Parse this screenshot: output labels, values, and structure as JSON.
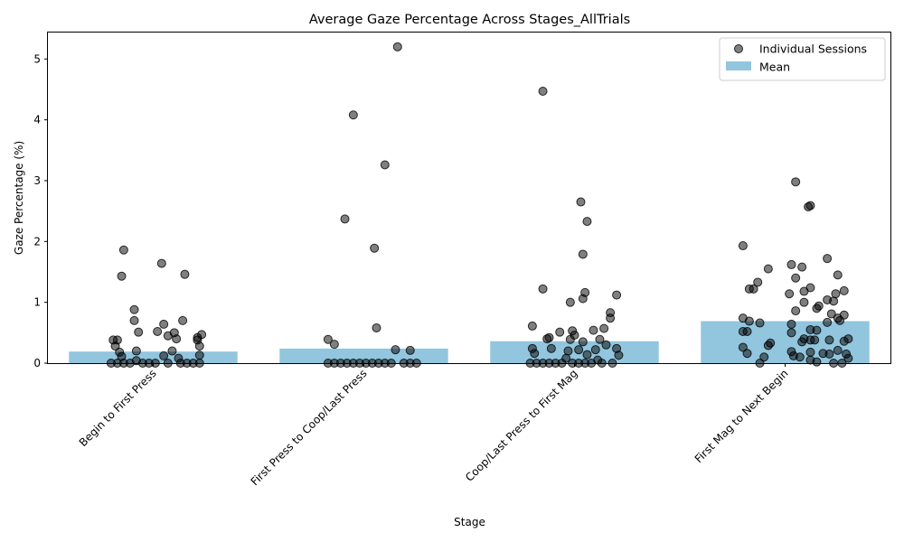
{
  "chart_data": {
    "type": "bar",
    "title": "Average Gaze Percentage Across Stages_AllTrials",
    "xlabel": "Stage",
    "ylabel": "Gaze Percentage (%)",
    "categories": [
      "Begin to First Press",
      "First Press to Coop/Last Press",
      "Coop/Last Press to First Mag",
      "First Mag to Next Begin"
    ],
    "ylim": [
      0,
      5.45
    ],
    "yticks": [
      0,
      1,
      2,
      3,
      4,
      5
    ],
    "legend_position": "top-right",
    "grid": false,
    "series": [
      {
        "name": "Mean",
        "kind": "bar",
        "color": "#92c5de",
        "values": [
          0.19,
          0.24,
          0.36,
          0.69
        ]
      },
      {
        "name": "Individual Sessions",
        "kind": "scatter",
        "color": "#000000",
        "points": [
          {
            "c": 0,
            "dx": -0.14,
            "y": 1.86
          },
          {
            "c": 0,
            "dx": -0.15,
            "y": 1.43
          },
          {
            "c": 0,
            "dx": 0.04,
            "y": 1.64
          },
          {
            "c": 0,
            "dx": 0.15,
            "y": 1.46
          },
          {
            "c": 0,
            "dx": -0.09,
            "y": 0.88
          },
          {
            "c": 0,
            "dx": -0.09,
            "y": 0.7
          },
          {
            "c": 0,
            "dx": 0.14,
            "y": 0.7
          },
          {
            "c": 0,
            "dx": 0.05,
            "y": 0.64
          },
          {
            "c": 0,
            "dx": 0.1,
            "y": 0.5
          },
          {
            "c": 0,
            "dx": -0.07,
            "y": 0.51
          },
          {
            "c": 0,
            "dx": 0.02,
            "y": 0.52
          },
          {
            "c": 0,
            "dx": 0.23,
            "y": 0.47
          },
          {
            "c": 0,
            "dx": 0.07,
            "y": 0.45
          },
          {
            "c": 0,
            "dx": 0.21,
            "y": 0.42
          },
          {
            "c": 0,
            "dx": 0.11,
            "y": 0.4
          },
          {
            "c": 0,
            "dx": -0.17,
            "y": 0.38
          },
          {
            "c": 0,
            "dx": -0.19,
            "y": 0.38
          },
          {
            "c": 0,
            "dx": 0.21,
            "y": 0.38
          },
          {
            "c": 0,
            "dx": -0.18,
            "y": 0.28
          },
          {
            "c": 0,
            "dx": 0.22,
            "y": 0.28
          },
          {
            "c": 0,
            "dx": -0.08,
            "y": 0.2
          },
          {
            "c": 0,
            "dx": 0.09,
            "y": 0.2
          },
          {
            "c": 0,
            "dx": -0.16,
            "y": 0.18
          },
          {
            "c": 0,
            "dx": 0.22,
            "y": 0.13
          },
          {
            "c": 0,
            "dx": 0.05,
            "y": 0.12
          },
          {
            "c": 0,
            "dx": -0.15,
            "y": 0.11
          },
          {
            "c": 0,
            "dx": 0.12,
            "y": 0.08
          },
          {
            "c": 0,
            "dx": -0.08,
            "y": 0.04
          },
          {
            "c": 0,
            "dx": -0.2,
            "y": 0.0
          },
          {
            "c": 0,
            "dx": -0.17,
            "y": 0.0
          },
          {
            "c": 0,
            "dx": -0.14,
            "y": 0.0
          },
          {
            "c": 0,
            "dx": -0.11,
            "y": 0.0
          },
          {
            "c": 0,
            "dx": -0.05,
            "y": 0.0
          },
          {
            "c": 0,
            "dx": -0.02,
            "y": 0.0
          },
          {
            "c": 0,
            "dx": 0.01,
            "y": 0.0
          },
          {
            "c": 0,
            "dx": 0.07,
            "y": 0.0
          },
          {
            "c": 0,
            "dx": 0.13,
            "y": 0.0
          },
          {
            "c": 0,
            "dx": 0.16,
            "y": 0.0
          },
          {
            "c": 0,
            "dx": 0.19,
            "y": 0.0
          },
          {
            "c": 0,
            "dx": 0.22,
            "y": 0.0
          },
          {
            "c": 1,
            "dx": 0.16,
            "y": 5.2
          },
          {
            "c": 1,
            "dx": -0.05,
            "y": 4.08
          },
          {
            "c": 1,
            "dx": 0.1,
            "y": 3.26
          },
          {
            "c": 1,
            "dx": -0.09,
            "y": 2.37
          },
          {
            "c": 1,
            "dx": 0.05,
            "y": 1.89
          },
          {
            "c": 1,
            "dx": 0.06,
            "y": 0.58
          },
          {
            "c": 1,
            "dx": -0.17,
            "y": 0.39
          },
          {
            "c": 1,
            "dx": -0.14,
            "y": 0.31
          },
          {
            "c": 1,
            "dx": 0.15,
            "y": 0.22
          },
          {
            "c": 1,
            "dx": 0.22,
            "y": 0.21
          },
          {
            "c": 1,
            "dx": -0.17,
            "y": 0.0
          },
          {
            "c": 1,
            "dx": -0.14,
            "y": 0.0
          },
          {
            "c": 1,
            "dx": -0.11,
            "y": 0.0
          },
          {
            "c": 1,
            "dx": -0.08,
            "y": 0.0
          },
          {
            "c": 1,
            "dx": -0.05,
            "y": 0.0
          },
          {
            "c": 1,
            "dx": -0.02,
            "y": 0.0
          },
          {
            "c": 1,
            "dx": 0.01,
            "y": 0.0
          },
          {
            "c": 1,
            "dx": 0.04,
            "y": 0.0
          },
          {
            "c": 1,
            "dx": 0.07,
            "y": 0.0
          },
          {
            "c": 1,
            "dx": 0.1,
            "y": 0.0
          },
          {
            "c": 1,
            "dx": 0.13,
            "y": 0.0
          },
          {
            "c": 1,
            "dx": 0.19,
            "y": 0.0
          },
          {
            "c": 1,
            "dx": 0.22,
            "y": 0.0
          },
          {
            "c": 1,
            "dx": 0.25,
            "y": 0.0
          },
          {
            "c": 2,
            "dx": -0.15,
            "y": 4.47
          },
          {
            "c": 2,
            "dx": 0.03,
            "y": 2.65
          },
          {
            "c": 2,
            "dx": 0.06,
            "y": 2.33
          },
          {
            "c": 2,
            "dx": 0.04,
            "y": 1.79
          },
          {
            "c": 2,
            "dx": -0.15,
            "y": 1.22
          },
          {
            "c": 2,
            "dx": 0.05,
            "y": 1.16
          },
          {
            "c": 2,
            "dx": 0.2,
            "y": 1.12
          },
          {
            "c": 2,
            "dx": 0.04,
            "y": 1.06
          },
          {
            "c": 2,
            "dx": -0.02,
            "y": 1.0
          },
          {
            "c": 2,
            "dx": 0.17,
            "y": 0.83
          },
          {
            "c": 2,
            "dx": 0.17,
            "y": 0.74
          },
          {
            "c": 2,
            "dx": -0.2,
            "y": 0.61
          },
          {
            "c": 2,
            "dx": 0.14,
            "y": 0.57
          },
          {
            "c": 2,
            "dx": 0.09,
            "y": 0.54
          },
          {
            "c": 2,
            "dx": -0.01,
            "y": 0.53
          },
          {
            "c": 2,
            "dx": -0.07,
            "y": 0.51
          },
          {
            "c": 2,
            "dx": 0.0,
            "y": 0.46
          },
          {
            "c": 2,
            "dx": -0.12,
            "y": 0.42
          },
          {
            "c": 2,
            "dx": -0.13,
            "y": 0.4
          },
          {
            "c": 2,
            "dx": -0.02,
            "y": 0.39
          },
          {
            "c": 2,
            "dx": 0.12,
            "y": 0.39
          },
          {
            "c": 2,
            "dx": 0.04,
            "y": 0.35
          },
          {
            "c": 2,
            "dx": 0.15,
            "y": 0.3
          },
          {
            "c": 2,
            "dx": -0.2,
            "y": 0.24
          },
          {
            "c": 2,
            "dx": -0.11,
            "y": 0.24
          },
          {
            "c": 2,
            "dx": 0.2,
            "y": 0.24
          },
          {
            "c": 2,
            "dx": 0.02,
            "y": 0.22
          },
          {
            "c": 2,
            "dx": 0.1,
            "y": 0.22
          },
          {
            "c": 2,
            "dx": -0.03,
            "y": 0.2
          },
          {
            "c": 2,
            "dx": -0.19,
            "y": 0.16
          },
          {
            "c": 2,
            "dx": 0.06,
            "y": 0.14
          },
          {
            "c": 2,
            "dx": 0.21,
            "y": 0.13
          },
          {
            "c": 2,
            "dx": -0.04,
            "y": 0.08
          },
          {
            "c": 2,
            "dx": 0.11,
            "y": 0.05
          },
          {
            "c": 2,
            "dx": -0.21,
            "y": 0.0
          },
          {
            "c": 2,
            "dx": -0.18,
            "y": 0.0
          },
          {
            "c": 2,
            "dx": -0.15,
            "y": 0.0
          },
          {
            "c": 2,
            "dx": -0.12,
            "y": 0.0
          },
          {
            "c": 2,
            "dx": -0.09,
            "y": 0.0
          },
          {
            "c": 2,
            "dx": -0.06,
            "y": 0.0
          },
          {
            "c": 2,
            "dx": -0.01,
            "y": 0.0
          },
          {
            "c": 2,
            "dx": 0.02,
            "y": 0.0
          },
          {
            "c": 2,
            "dx": 0.05,
            "y": 0.0
          },
          {
            "c": 2,
            "dx": 0.08,
            "y": 0.0
          },
          {
            "c": 2,
            "dx": 0.13,
            "y": 0.0
          },
          {
            "c": 2,
            "dx": 0.18,
            "y": 0.0
          },
          {
            "c": 3,
            "dx": 0.05,
            "y": 2.98
          },
          {
            "c": 3,
            "dx": 0.12,
            "y": 2.59
          },
          {
            "c": 3,
            "dx": 0.11,
            "y": 2.57
          },
          {
            "c": 3,
            "dx": -0.2,
            "y": 1.93
          },
          {
            "c": 3,
            "dx": 0.2,
            "y": 1.72
          },
          {
            "c": 3,
            "dx": 0.03,
            "y": 1.62
          },
          {
            "c": 3,
            "dx": 0.08,
            "y": 1.58
          },
          {
            "c": 3,
            "dx": -0.08,
            "y": 1.55
          },
          {
            "c": 3,
            "dx": 0.25,
            "y": 1.45
          },
          {
            "c": 3,
            "dx": 0.05,
            "y": 1.4
          },
          {
            "c": 3,
            "dx": -0.13,
            "y": 1.33
          },
          {
            "c": 3,
            "dx": 0.12,
            "y": 1.24
          },
          {
            "c": 3,
            "dx": -0.15,
            "y": 1.22
          },
          {
            "c": 3,
            "dx": -0.17,
            "y": 1.22
          },
          {
            "c": 3,
            "dx": 0.28,
            "y": 1.19
          },
          {
            "c": 3,
            "dx": 0.09,
            "y": 1.18
          },
          {
            "c": 3,
            "dx": 0.02,
            "y": 1.14
          },
          {
            "c": 3,
            "dx": 0.24,
            "y": 1.14
          },
          {
            "c": 3,
            "dx": 0.2,
            "y": 1.04
          },
          {
            "c": 3,
            "dx": 0.23,
            "y": 1.02
          },
          {
            "c": 3,
            "dx": 0.09,
            "y": 1.0
          },
          {
            "c": 3,
            "dx": 0.16,
            "y": 0.94
          },
          {
            "c": 3,
            "dx": 0.15,
            "y": 0.9
          },
          {
            "c": 3,
            "dx": 0.05,
            "y": 0.86
          },
          {
            "c": 3,
            "dx": 0.22,
            "y": 0.81
          },
          {
            "c": 3,
            "dx": 0.28,
            "y": 0.79
          },
          {
            "c": 3,
            "dx": 0.25,
            "y": 0.74
          },
          {
            "c": 3,
            "dx": -0.2,
            "y": 0.74
          },
          {
            "c": 3,
            "dx": 0.26,
            "y": 0.7
          },
          {
            "c": 3,
            "dx": -0.17,
            "y": 0.69
          },
          {
            "c": 3,
            "dx": 0.2,
            "y": 0.67
          },
          {
            "c": 3,
            "dx": -0.12,
            "y": 0.66
          },
          {
            "c": 3,
            "dx": 0.03,
            "y": 0.64
          },
          {
            "c": 3,
            "dx": 0.12,
            "y": 0.55
          },
          {
            "c": 3,
            "dx": 0.15,
            "y": 0.54
          },
          {
            "c": 3,
            "dx": -0.2,
            "y": 0.52
          },
          {
            "c": 3,
            "dx": -0.18,
            "y": 0.52
          },
          {
            "c": 3,
            "dx": 0.03,
            "y": 0.5
          },
          {
            "c": 3,
            "dx": 0.3,
            "y": 0.4
          },
          {
            "c": 3,
            "dx": 0.09,
            "y": 0.4
          },
          {
            "c": 3,
            "dx": 0.12,
            "y": 0.38
          },
          {
            "c": 3,
            "dx": 0.14,
            "y": 0.38
          },
          {
            "c": 3,
            "dx": 0.21,
            "y": 0.38
          },
          {
            "c": 3,
            "dx": 0.28,
            "y": 0.36
          },
          {
            "c": 3,
            "dx": 0.08,
            "y": 0.35
          },
          {
            "c": 3,
            "dx": -0.07,
            "y": 0.33
          },
          {
            "c": 3,
            "dx": -0.08,
            "y": 0.29
          },
          {
            "c": 3,
            "dx": -0.2,
            "y": 0.26
          },
          {
            "c": 3,
            "dx": 0.25,
            "y": 0.21
          },
          {
            "c": 3,
            "dx": 0.03,
            "y": 0.19
          },
          {
            "c": 3,
            "dx": 0.12,
            "y": 0.18
          },
          {
            "c": 3,
            "dx": -0.18,
            "y": 0.16
          },
          {
            "c": 3,
            "dx": 0.18,
            "y": 0.16
          },
          {
            "c": 3,
            "dx": 0.21,
            "y": 0.15
          },
          {
            "c": 3,
            "dx": 0.29,
            "y": 0.15
          },
          {
            "c": 3,
            "dx": 0.04,
            "y": 0.12
          },
          {
            "c": 3,
            "dx": -0.1,
            "y": 0.1
          },
          {
            "c": 3,
            "dx": 0.07,
            "y": 0.1
          },
          {
            "c": 3,
            "dx": 0.3,
            "y": 0.08
          },
          {
            "c": 3,
            "dx": 0.12,
            "y": 0.05
          },
          {
            "c": 3,
            "dx": 0.15,
            "y": 0.02
          },
          {
            "c": 3,
            "dx": -0.12,
            "y": 0.0
          },
          {
            "c": 3,
            "dx": 0.23,
            "y": 0.0
          },
          {
            "c": 3,
            "dx": 0.27,
            "y": 0.0
          }
        ]
      }
    ]
  }
}
